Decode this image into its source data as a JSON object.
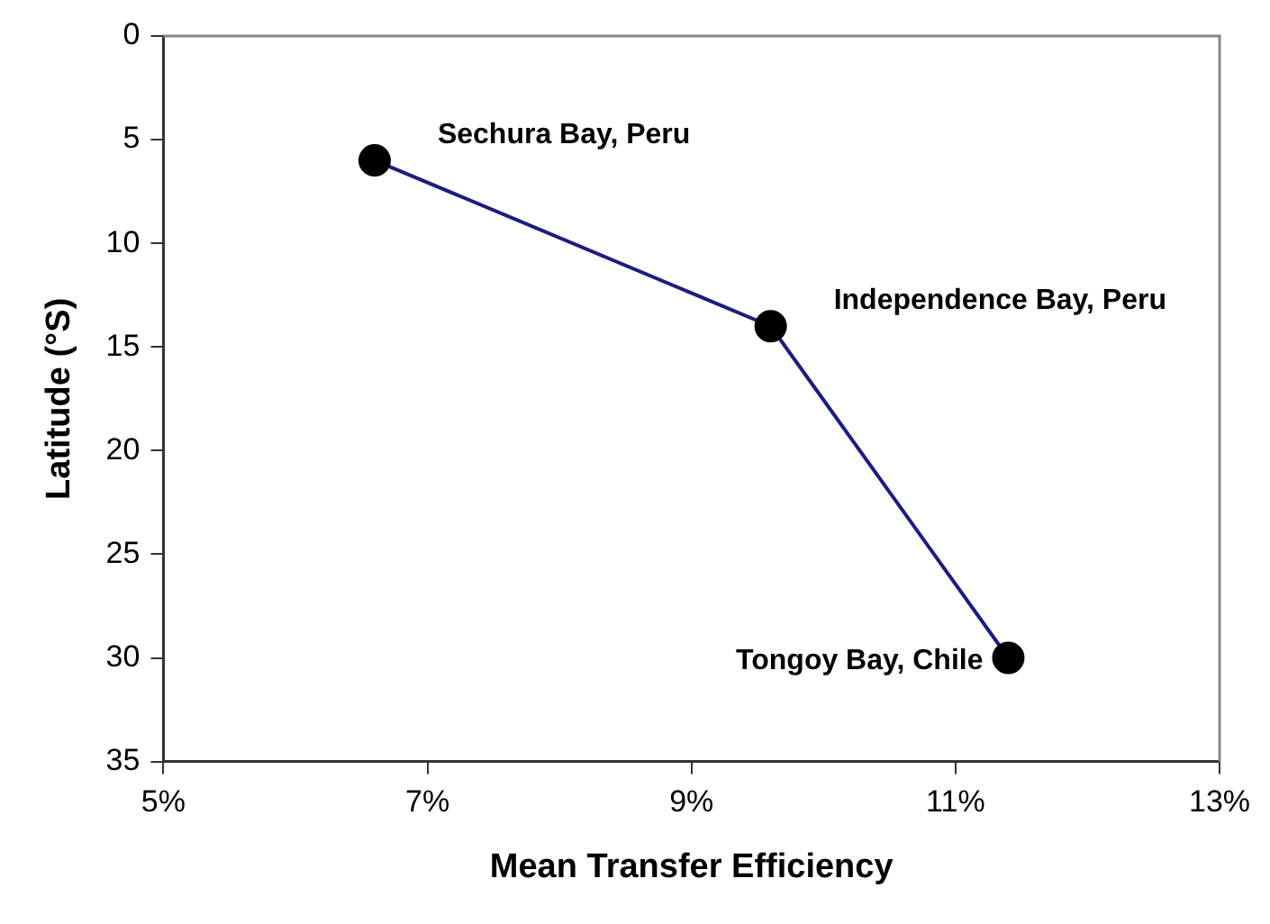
{
  "chart_data": {
    "type": "line",
    "xlabel": "Mean Transfer Efficiency",
    "ylabel": "Latitude (°S)",
    "x": [
      6.6,
      9.6,
      11.4
    ],
    "series": [
      {
        "color": "#1c1c80",
        "values": [
          6,
          14,
          30
        ]
      }
    ],
    "marker": "circle",
    "line_style": "solid",
    "grid": false,
    "legend": false,
    "xlim": [
      5,
      13
    ],
    "xticks": [
      {
        "value": 5,
        "label": "5%"
      },
      {
        "value": 7,
        "label": "7%"
      },
      {
        "value": 9,
        "label": "9%"
      },
      {
        "value": 11,
        "label": "11%"
      },
      {
        "value": 13,
        "label": "13%"
      }
    ],
    "ylim": [
      35,
      0
    ],
    "yticks": [
      0,
      5,
      10,
      15,
      20,
      25,
      30,
      35
    ],
    "annotations": [
      {
        "text": "Sechura Bay, Peru",
        "x": 6.6,
        "y": 6
      },
      {
        "text": "Independence Bay, Peru",
        "x": 9.6,
        "y": 14
      },
      {
        "text": "Tongoy Bay, Chile",
        "x": 11.4,
        "y": 30
      }
    ]
  }
}
